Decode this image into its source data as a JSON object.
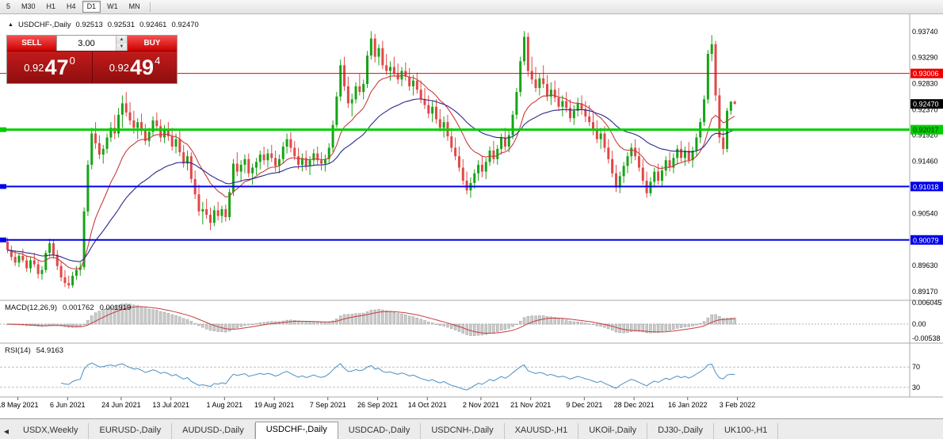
{
  "toolbar": {
    "periods": [
      "5",
      "M30",
      "H1",
      "H4",
      "D1",
      "W1",
      "MN"
    ],
    "active_period": "D1"
  },
  "chart_header": {
    "icon_glyph": "▲",
    "symbol": "USDCHF-,Daily",
    "open": "0.92513",
    "high": "0.92531",
    "low": "0.92461",
    "close": "0.92470"
  },
  "trade_widget": {
    "sell_label": "SELL",
    "buy_label": "BUY",
    "volume": "3.00",
    "spin_up": "▲",
    "spin_down": "▼",
    "sell_price": {
      "prefix": "0.92",
      "big": "47",
      "sup": "0"
    },
    "buy_price": {
      "prefix": "0.92",
      "big": "49",
      "sup": "4"
    }
  },
  "price_axis": {
    "regular_labels": [
      "0.93740",
      "0.93290",
      "0.92830",
      "0.92370",
      "0.91920",
      "0.91460",
      "0.90540",
      "0.89630",
      "0.89170"
    ],
    "current_price_tag": {
      "label": "0.92470",
      "price": 0.9247,
      "bg": "#000000",
      "fg": "#ffffff"
    }
  },
  "hlines": [
    {
      "price": 0.93006,
      "label": "0.93006",
      "color": "#ee0000",
      "fg": "#ffffff",
      "width": 1,
      "left_marker": false
    },
    {
      "price": 0.92017,
      "label": "0.92017",
      "color": "#00ce00",
      "fg": "#003300",
      "width": 3,
      "left_marker": true
    },
    {
      "price": 0.91018,
      "label": "0.91018",
      "color": "#0000e8",
      "fg": "#ffffff",
      "width": 2,
      "left_marker": true
    },
    {
      "price": 0.90079,
      "label": "0.90079",
      "color": "#0000e8",
      "fg": "#ffffff",
      "width": 2,
      "left_marker": true
    }
  ],
  "macd_panel": {
    "title": "MACD(12,26,9)",
    "value_main": "0.001762",
    "value_signal": "0.001919",
    "axis_labels": [
      "0.006045",
      "0.00",
      "-0.00538"
    ],
    "params": {
      "fast": 12,
      "slow": 26,
      "signal": 9
    }
  },
  "rsi_panel": {
    "title": "RSI(14)",
    "value": "54.9163",
    "period": 14,
    "levels": [
      70,
      30
    ]
  },
  "x_axis": {
    "labels": [
      {
        "text": "18 May 2021",
        "i": 3
      },
      {
        "text": "6 Jun 2021",
        "i": 16
      },
      {
        "text": "24 Jun 2021",
        "i": 30
      },
      {
        "text": "13 Jul 2021",
        "i": 43
      },
      {
        "text": "1 Aug 2021",
        "i": 57
      },
      {
        "text": "19 Aug 2021",
        "i": 70
      },
      {
        "text": "7 Sep 2021",
        "i": 84
      },
      {
        "text": "26 Sep 2021",
        "i": 97
      },
      {
        "text": "14 Oct 2021",
        "i": 110
      },
      {
        "text": "2 Nov 2021",
        "i": 124
      },
      {
        "text": "21 Nov 2021",
        "i": 137
      },
      {
        "text": "9 Dec 2021",
        "i": 151
      },
      {
        "text": "28 Dec 2021",
        "i": 164
      },
      {
        "text": "16 Jan 2022",
        "i": 178
      },
      {
        "text": "3 Feb 2022",
        "i": 191
      }
    ]
  },
  "tabs": {
    "scroll_left_icon": "◀",
    "active_index": 3,
    "items": [
      "USDX,Weekly",
      "EURUSD-,Daily",
      "AUDUSD-,Daily",
      "USDCHF-,Daily",
      "USDCAD-,Daily",
      "USDCNH-,Daily",
      "XAUUSD-,H1",
      "UKOil-,Daily",
      "DJ30-,Daily",
      "UK100-,H1"
    ]
  },
  "colors": {
    "bull": "#17a317",
    "bear": "#e04848",
    "ma_fast": "#c83c3c",
    "ma_slow": "#28288f",
    "macd_hist_fill": "#cbcbcb",
    "macd_hist_stroke": "#8f8f8f",
    "macd_signal": "#c83c3c",
    "rsi_line": "#4a90c2",
    "axis_text": "#000000",
    "separator": "#a8a8a8",
    "level_dash": "#c0c0c0"
  },
  "chart_data": {
    "type": "candlestick",
    "symbol": "USDCHF-",
    "timeframe": "Daily",
    "price_scale": 0.0001,
    "visible_range": {
      "top": 0.9374,
      "bottom": 0.8917
    },
    "current_bar": {
      "open": 0.92513,
      "high": 0.92531,
      "low": 0.92461,
      "close": 0.9247
    },
    "moving_averages": [
      {
        "type": "ema",
        "period": 13,
        "color": "#c83c3c"
      },
      {
        "type": "ema",
        "period": 34,
        "color": "#28288f"
      }
    ],
    "indicators": {
      "macd": {
        "fast": 12,
        "slow": 26,
        "signal": 9,
        "current_main": 0.001762,
        "current_signal": 0.001919
      },
      "rsi": {
        "period": 14,
        "current": 54.9163,
        "levels": [
          70,
          30
        ]
      }
    },
    "candles": [
      [
        9005,
        9012,
        8985,
        8990
      ],
      [
        8990,
        8998,
        8972,
        8978
      ],
      [
        8978,
        8990,
        8962,
        8968
      ],
      [
        8968,
        8985,
        8960,
        8980
      ],
      [
        8980,
        8992,
        8968,
        8972
      ],
      [
        8972,
        8980,
        8952,
        8958
      ],
      [
        8958,
        8978,
        8950,
        8972
      ],
      [
        8972,
        8985,
        8960,
        8965
      ],
      [
        8965,
        8972,
        8940,
        8948
      ],
      [
        8948,
        8962,
        8938,
        8955
      ],
      [
        8955,
        8990,
        8950,
        8985
      ],
      [
        8985,
        9010,
        8978,
        9002
      ],
      [
        9002,
        9008,
        8975,
        8982
      ],
      [
        8982,
        8990,
        8955,
        8962
      ],
      [
        8962,
        8970,
        8935,
        8942
      ],
      [
        8942,
        8955,
        8925,
        8932
      ],
      [
        8932,
        8945,
        8922,
        8928
      ],
      [
        8928,
        8952,
        8924,
        8945
      ],
      [
        8945,
        8962,
        8938,
        8955
      ],
      [
        8955,
        8968,
        8945,
        8960
      ],
      [
        8960,
        9065,
        8955,
        9058
      ],
      [
        9058,
        9148,
        9050,
        9140
      ],
      [
        9140,
        9205,
        9132,
        9195
      ],
      [
        9195,
        9215,
        9168,
        9178
      ],
      [
        9178,
        9192,
        9150,
        9158
      ],
      [
        9158,
        9175,
        9142,
        9168
      ],
      [
        9168,
        9195,
        9160,
        9188
      ],
      [
        9188,
        9215,
        9180,
        9205
      ],
      [
        9205,
        9228,
        9185,
        9195
      ],
      [
        9195,
        9240,
        9188,
        9228
      ],
      [
        9228,
        9262,
        9205,
        9248
      ],
      [
        9248,
        9268,
        9225,
        9232
      ],
      [
        9232,
        9250,
        9210,
        9218
      ],
      [
        9218,
        9235,
        9195,
        9205
      ],
      [
        9205,
        9222,
        9185,
        9215
      ],
      [
        9215,
        9230,
        9192,
        9200
      ],
      [
        9200,
        9212,
        9175,
        9182
      ],
      [
        9182,
        9205,
        9172,
        9198
      ],
      [
        9198,
        9225,
        9190,
        9218
      ],
      [
        9218,
        9232,
        9200,
        9208
      ],
      [
        9208,
        9220,
        9180,
        9188
      ],
      [
        9188,
        9210,
        9178,
        9202
      ],
      [
        9202,
        9215,
        9182,
        9190
      ],
      [
        9190,
        9205,
        9165,
        9172
      ],
      [
        9172,
        9195,
        9160,
        9185
      ],
      [
        9185,
        9200,
        9155,
        9162
      ],
      [
        9162,
        9175,
        9135,
        9142
      ],
      [
        9142,
        9165,
        9130,
        9155
      ],
      [
        9155,
        9162,
        9108,
        9115
      ],
      [
        9115,
        9130,
        9080,
        9088
      ],
      [
        9088,
        9105,
        9050,
        9058
      ],
      [
        9058,
        9075,
        9035,
        9062
      ],
      [
        9062,
        9080,
        9045,
        9052
      ],
      [
        9052,
        9065,
        9025,
        9038
      ],
      [
        9038,
        9068,
        9032,
        9060
      ],
      [
        9060,
        9075,
        9042,
        9050
      ],
      [
        9050,
        9068,
        9038,
        9062
      ],
      [
        9062,
        9070,
        9040,
        9048
      ],
      [
        9048,
        9098,
        9042,
        9092
      ],
      [
        9092,
        9150,
        9085,
        9142
      ],
      [
        9142,
        9162,
        9120,
        9128
      ],
      [
        9128,
        9148,
        9110,
        9140
      ],
      [
        9140,
        9158,
        9125,
        9150
      ],
      [
        9150,
        9160,
        9118,
        9125
      ],
      [
        9125,
        9142,
        9105,
        9135
      ],
      [
        9135,
        9152,
        9122,
        9145
      ],
      [
        9145,
        9165,
        9132,
        9158
      ],
      [
        9158,
        9172,
        9140,
        9148
      ],
      [
        9148,
        9168,
        9135,
        9160
      ],
      [
        9160,
        9175,
        9145,
        9152
      ],
      [
        9152,
        9165,
        9128,
        9138
      ],
      [
        9138,
        9158,
        9125,
        9150
      ],
      [
        9150,
        9180,
        9142,
        9172
      ],
      [
        9172,
        9195,
        9160,
        9185
      ],
      [
        9185,
        9198,
        9162,
        9170
      ],
      [
        9170,
        9182,
        9148,
        9155
      ],
      [
        9155,
        9170,
        9132,
        9140
      ],
      [
        9140,
        9160,
        9128,
        9152
      ],
      [
        9152,
        9165,
        9130,
        9138
      ],
      [
        9138,
        9155,
        9122,
        9148
      ],
      [
        9148,
        9168,
        9138,
        9160
      ],
      [
        9160,
        9172,
        9140,
        9148
      ],
      [
        9148,
        9162,
        9130,
        9142
      ],
      [
        9142,
        9158,
        9128,
        9150
      ],
      [
        9150,
        9178,
        9142,
        9170
      ],
      [
        9170,
        9218,
        9162,
        9210
      ],
      [
        9210,
        9268,
        9205,
        9260
      ],
      [
        9260,
        9325,
        9252,
        9315
      ],
      [
        9315,
        9330,
        9270,
        9278
      ],
      [
        9278,
        9295,
        9240,
        9248
      ],
      [
        9248,
        9265,
        9225,
        9255
      ],
      [
        9255,
        9285,
        9248,
        9278
      ],
      [
        9278,
        9300,
        9262,
        9268
      ],
      [
        9268,
        9290,
        9255,
        9282
      ],
      [
        9282,
        9340,
        9275,
        9332
      ],
      [
        9332,
        9375,
        9325,
        9362
      ],
      [
        9362,
        9370,
        9320,
        9330
      ],
      [
        9330,
        9352,
        9315,
        9345
      ],
      [
        9345,
        9358,
        9308,
        9315
      ],
      [
        9315,
        9335,
        9298,
        9305
      ],
      [
        9305,
        9322,
        9288,
        9312
      ],
      [
        9312,
        9330,
        9295,
        9300
      ],
      [
        9300,
        9318,
        9282,
        9290
      ],
      [
        9290,
        9312,
        9278,
        9305
      ],
      [
        9305,
        9320,
        9288,
        9295
      ],
      [
        9295,
        9310,
        9270,
        9278
      ],
      [
        9278,
        9298,
        9262,
        9288
      ],
      [
        9288,
        9302,
        9265,
        9272
      ],
      [
        9272,
        9288,
        9248,
        9255
      ],
      [
        9255,
        9275,
        9238,
        9245
      ],
      [
        9245,
        9262,
        9222,
        9230
      ],
      [
        9230,
        9252,
        9215,
        9242
      ],
      [
        9242,
        9255,
        9212,
        9220
      ],
      [
        9220,
        9238,
        9198,
        9205
      ],
      [
        9205,
        9225,
        9188,
        9215
      ],
      [
        9215,
        9228,
        9182,
        9190
      ],
      [
        9190,
        9205,
        9162,
        9170
      ],
      [
        9170,
        9188,
        9148,
        9155
      ],
      [
        9155,
        9172,
        9128,
        9135
      ],
      [
        9135,
        9150,
        9105,
        9112
      ],
      [
        9112,
        9128,
        9088,
        9095
      ],
      [
        9095,
        9118,
        9082,
        9108
      ],
      [
        9108,
        9132,
        9098,
        9125
      ],
      [
        9125,
        9148,
        9112,
        9140
      ],
      [
        9140,
        9155,
        9118,
        9128
      ],
      [
        9128,
        9152,
        9115,
        9145
      ],
      [
        9145,
        9172,
        9138,
        9165
      ],
      [
        9165,
        9182,
        9142,
        9150
      ],
      [
        9150,
        9175,
        9140,
        9168
      ],
      [
        9168,
        9195,
        9158,
        9188
      ],
      [
        9188,
        9205,
        9165,
        9172
      ],
      [
        9172,
        9200,
        9162,
        9192
      ],
      [
        9192,
        9235,
        9185,
        9228
      ],
      [
        9228,
        9275,
        9220,
        9268
      ],
      [
        9268,
        9330,
        9260,
        9322
      ],
      [
        9322,
        9375,
        9315,
        9365
      ],
      [
        9365,
        9372,
        9295,
        9305
      ],
      [
        9305,
        9330,
        9282,
        9290
      ],
      [
        9290,
        9312,
        9268,
        9275
      ],
      [
        9275,
        9300,
        9262,
        9292
      ],
      [
        9292,
        9315,
        9275,
        9282
      ],
      [
        9282,
        9298,
        9252,
        9260
      ],
      [
        9260,
        9285,
        9245,
        9272
      ],
      [
        9272,
        9288,
        9250,
        9258
      ],
      [
        9258,
        9275,
        9235,
        9242
      ],
      [
        9242,
        9262,
        9225,
        9252
      ],
      [
        9252,
        9268,
        9232,
        9240
      ],
      [
        9240,
        9255,
        9215,
        9222
      ],
      [
        9222,
        9245,
        9210,
        9235
      ],
      [
        9235,
        9258,
        9225,
        9248
      ],
      [
        9248,
        9262,
        9228,
        9238
      ],
      [
        9238,
        9252,
        9215,
        9225
      ],
      [
        9225,
        9245,
        9208,
        9215
      ],
      [
        9215,
        9232,
        9192,
        9200
      ],
      [
        9200,
        9218,
        9178,
        9185
      ],
      [
        9185,
        9205,
        9168,
        9195
      ],
      [
        9195,
        9208,
        9162,
        9170
      ],
      [
        9170,
        9185,
        9142,
        9150
      ],
      [
        9150,
        9165,
        9118,
        9125
      ],
      [
        9125,
        9140,
        9092,
        9100
      ],
      [
        9100,
        9128,
        9090,
        9120
      ],
      [
        9120,
        9145,
        9108,
        9138
      ],
      [
        9138,
        9162,
        9125,
        9155
      ],
      [
        9155,
        9178,
        9142,
        9170
      ],
      [
        9170,
        9185,
        9148,
        9155
      ],
      [
        9155,
        9170,
        9128,
        9135
      ],
      [
        9135,
        9150,
        9105,
        9112
      ],
      [
        9112,
        9128,
        9082,
        9090
      ],
      [
        9090,
        9118,
        9085,
        9110
      ],
      [
        9110,
        9135,
        9100,
        9128
      ],
      [
        9128,
        9142,
        9105,
        9112
      ],
      [
        9112,
        9138,
        9102,
        9130
      ],
      [
        9130,
        9155,
        9120,
        9148
      ],
      [
        9148,
        9162,
        9128,
        9135
      ],
      [
        9135,
        9160,
        9125,
        9152
      ],
      [
        9152,
        9175,
        9140,
        9168
      ],
      [
        9168,
        9182,
        9145,
        9152
      ],
      [
        9152,
        9172,
        9138,
        9165
      ],
      [
        9165,
        9180,
        9142,
        9148
      ],
      [
        9148,
        9172,
        9135,
        9165
      ],
      [
        9165,
        9195,
        9155,
        9188
      ],
      [
        9188,
        9222,
        9178,
        9215
      ],
      [
        9215,
        9262,
        9208,
        9255
      ],
      [
        9255,
        9342,
        9248,
        9335
      ],
      [
        9335,
        9368,
        9322,
        9352
      ],
      [
        9352,
        9358,
        9252,
        9262
      ],
      [
        9262,
        9275,
        9178,
        9188
      ],
      [
        9188,
        9205,
        9158,
        9168
      ],
      [
        9168,
        9240,
        9162,
        9235
      ],
      [
        9235,
        9252,
        9228,
        9251
      ],
      [
        9251,
        9253,
        9246,
        9247
      ]
    ]
  }
}
